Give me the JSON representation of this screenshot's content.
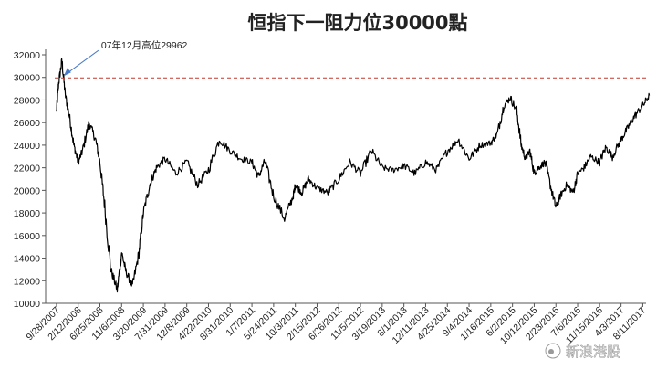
{
  "chart_data": {
    "type": "line",
    "title": "恒指下一阻力位30000點",
    "xlabel": "",
    "ylabel": "",
    "ylim": [
      10000,
      32000
    ],
    "yticks": [
      10000,
      12000,
      14000,
      16000,
      18000,
      20000,
      22000,
      24000,
      26000,
      28000,
      30000,
      32000
    ],
    "ytick_labels": [
      "10000",
      "12000",
      "14000",
      "16000",
      "18000",
      "20000",
      "22000",
      "24000",
      "26000",
      "28000",
      "30000",
      "32000"
    ],
    "x_tick_labels": [
      "9/28/2007",
      "2/12/2008",
      "6/25/2008",
      "11/6/2008",
      "3/20/2009",
      "7/31/2009",
      "12/8/2009",
      "4/22/2010",
      "8/31/2010",
      "1/7/2011",
      "5/24/2011",
      "10/3/2011",
      "2/15/2012",
      "6/26/2012",
      "11/5/2012",
      "3/19/2013",
      "8/1/2013",
      "12/11/2013",
      "4/25/2014",
      "9/4/2014",
      "1/16/2015",
      "6/2/2015",
      "10/12/2015",
      "2/23/2016",
      "7/6/2016",
      "11/15/2016",
      "4/3/2017",
      "8/11/2017"
    ],
    "reference_line": {
      "value": 29962,
      "style": "dashed",
      "color": "#c0392b"
    },
    "annotation": {
      "text": "07年12月高位29962",
      "x_index": 0.25,
      "y": 29962
    },
    "grid": false,
    "series": [
      {
        "color": "#000000",
        "x": [
          0,
          0.1,
          0.25,
          0.4,
          0.6,
          0.8,
          1.0,
          1.2,
          1.5,
          1.8,
          2.0,
          2.2,
          2.5,
          2.8,
          3.0,
          3.2,
          3.5,
          3.8,
          4.0,
          4.3,
          4.6,
          5.0,
          5.5,
          6.0,
          6.5,
          7.0,
          7.5,
          8.0,
          8.5,
          9.0,
          9.3,
          9.6,
          10.0,
          10.5,
          10.9,
          11.0,
          11.3,
          11.6,
          12.0,
          12.5,
          13.0,
          13.5,
          14.0,
          14.5,
          15.0,
          15.5,
          16.0,
          16.5,
          17.0,
          17.5,
          18.0,
          18.5,
          19.0,
          19.5,
          20.0,
          20.3,
          20.6,
          20.9,
          21.2,
          21.4,
          21.6,
          21.8,
          22.0,
          22.2,
          22.5,
          22.8,
          23.0,
          23.2,
          23.5,
          23.8,
          24.0,
          24.3,
          24.6,
          25.0,
          25.3,
          25.6,
          26.0,
          26.3,
          26.6,
          27.0,
          27.3
        ],
        "y": [
          27000,
          29500,
          31500,
          28500,
          26500,
          24000,
          22500,
          23500,
          26000,
          24500,
          22500,
          19000,
          13000,
          11200,
          14500,
          12800,
          11500,
          14500,
          18000,
          20500,
          22000,
          22800,
          21500,
          22500,
          20500,
          21800,
          24500,
          23500,
          22800,
          22500,
          21200,
          22600,
          19500,
          17500,
          19500,
          20500,
          19800,
          21000,
          20200,
          19800,
          21000,
          22500,
          21500,
          23500,
          22000,
          21800,
          22200,
          21500,
          22500,
          21800,
          23500,
          24500,
          22800,
          24000,
          24200,
          25000,
          27500,
          28200,
          27000,
          24000,
          22800,
          23500,
          21500,
          22000,
          22500,
          20000,
          18500,
          19500,
          20500,
          19800,
          21500,
          22000,
          23000,
          22500,
          23800,
          23000,
          24500,
          25500,
          26500,
          27500,
          28400
        ]
      }
    ]
  },
  "watermark": {
    "text": "新浪港股"
  }
}
